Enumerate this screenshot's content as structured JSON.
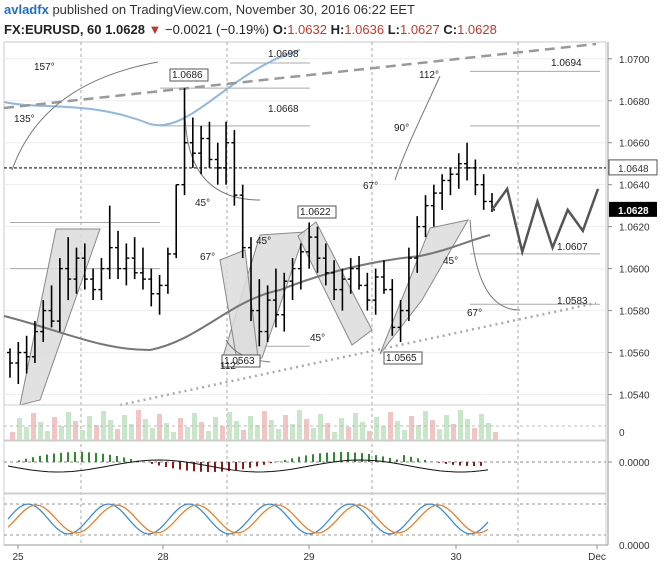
{
  "header": {
    "author": "avladfx",
    "published_text": "published on TradingView.com, November 30, 2016 06:22 EET",
    "symbol": "FX:EURUSD, 60",
    "last": "1.0628",
    "change": "−0.0021 (−0.19%)",
    "o_label": "O:",
    "o_value": "1.0632",
    "h_label": "H:",
    "h_value": "1.0636",
    "l_label": "L:",
    "l_value": "1.0627",
    "c_label": "C:",
    "c_value": "1.0628"
  },
  "colors": {
    "price": "#000000",
    "ma_blue": "#8fb8e0",
    "ma_gray": "#777777",
    "down_arrow": "#c0392b",
    "hist_up": "#2e8b2e",
    "hist_down": "#8b1a1a",
    "stoch_k": "#3a8fd6",
    "stoch_d": "#e8822a"
  },
  "chart_data": {
    "type": "candlestick",
    "x_labels": [
      "25",
      "28",
      "29",
      "30",
      "Dec"
    ],
    "y_axis": {
      "ticks": [
        "1.0700",
        "1.0680",
        "1.0660",
        "1.0640",
        "1.0620",
        "1.0600",
        "1.0580",
        "1.0560",
        "1.0540"
      ],
      "ylim": [
        1.0535,
        1.0708
      ]
    },
    "last_price_label": "1.0628",
    "dashed_level_label": "1.0648",
    "price_labels": [
      "1.0698",
      "1.0686",
      "1.0668",
      "1.0694",
      "1.0622",
      "1.0607",
      "1.0583",
      "1.0563",
      "1.0565"
    ],
    "angle_labels": [
      "157°",
      "135°",
      "45°",
      "67°",
      "45°",
      "112°",
      "45°",
      "90°",
      "67°",
      "112°",
      "45°",
      "67°"
    ],
    "price_series": [
      [
        1.056,
        1.0562,
        1.0548,
        1.0555
      ],
      [
        1.0555,
        1.0565,
        1.0545,
        1.056
      ],
      [
        1.056,
        1.0568,
        1.055,
        1.0558
      ],
      [
        1.0558,
        1.0575,
        1.0555,
        1.057
      ],
      [
        1.057,
        1.0585,
        1.0565,
        1.058
      ],
      [
        1.058,
        1.0592,
        1.0572,
        1.0575
      ],
      [
        1.0575,
        1.0605,
        1.057,
        1.06
      ],
      [
        1.06,
        1.0615,
        1.0585,
        1.0595
      ],
      [
        1.0595,
        1.061,
        1.0588,
        1.0605
      ],
      [
        1.0605,
        1.0612,
        1.059,
        1.0595
      ],
      [
        1.0595,
        1.06,
        1.0585,
        1.059
      ],
      [
        1.059,
        1.0605,
        1.0585,
        1.06
      ],
      [
        1.06,
        1.063,
        1.0595,
        1.061
      ],
      [
        1.061,
        1.0618,
        1.0595,
        1.06
      ],
      [
        1.06,
        1.0612,
        1.0592,
        1.0605
      ],
      [
        1.0605,
        1.0615,
        1.0595,
        1.0598
      ],
      [
        1.0598,
        1.061,
        1.059,
        1.0595
      ],
      [
        1.0595,
        1.06,
        1.0582,
        1.0588
      ],
      [
        1.0588,
        1.0597,
        1.0578,
        1.0592
      ],
      [
        1.0592,
        1.061,
        1.0588,
        1.0607
      ],
      [
        1.0607,
        1.064,
        1.0605,
        1.064
      ],
      [
        1.064,
        1.0686,
        1.0635,
        1.066
      ],
      [
        1.066,
        1.0672,
        1.0648,
        1.0655
      ],
      [
        1.0655,
        1.0668,
        1.0645,
        1.0662
      ],
      [
        1.0662,
        1.067,
        1.0648,
        1.0652
      ],
      [
        1.0652,
        1.066,
        1.064,
        1.0648
      ],
      [
        1.0648,
        1.067,
        1.064,
        1.066
      ],
      [
        1.066,
        1.0666,
        1.063,
        1.0635
      ],
      [
        1.0635,
        1.064,
        1.0605,
        1.061
      ],
      [
        1.061,
        1.0615,
        1.0575,
        1.058
      ],
      [
        1.058,
        1.0595,
        1.0563,
        1.057
      ],
      [
        1.057,
        1.0592,
        1.0565,
        1.0585
      ],
      [
        1.0585,
        1.06,
        1.0572,
        1.0578
      ],
      [
        1.0578,
        1.0598,
        1.057,
        1.0594
      ],
      [
        1.0594,
        1.0605,
        1.0585,
        1.06
      ],
      [
        1.06,
        1.0612,
        1.059,
        1.0608
      ],
      [
        1.0608,
        1.0622,
        1.06,
        1.0615
      ],
      [
        1.0615,
        1.062,
        1.0598,
        1.0605
      ],
      [
        1.0605,
        1.0612,
        1.0592,
        1.0598
      ],
      [
        1.0598,
        1.0604,
        1.0585,
        1.059
      ],
      [
        1.059,
        1.06,
        1.058,
        1.0595
      ],
      [
        1.0595,
        1.0605,
        1.0588,
        1.06
      ],
      [
        1.06,
        1.0606,
        1.059,
        1.0592
      ],
      [
        1.0592,
        1.0598,
        1.058,
        1.0585
      ],
      [
        1.0585,
        1.06,
        1.0578,
        1.0596
      ],
      [
        1.0596,
        1.0604,
        1.0588,
        1.059
      ],
      [
        1.059,
        1.0595,
        1.0568,
        1.0572
      ],
      [
        1.0572,
        1.0585,
        1.0565,
        1.058
      ],
      [
        1.058,
        1.061,
        1.0575,
        1.0605
      ],
      [
        1.0605,
        1.0625,
        1.0598,
        1.062
      ],
      [
        1.062,
        1.0635,
        1.0615,
        1.063
      ],
      [
        1.063,
        1.064,
        1.062,
        1.0636
      ],
      [
        1.0636,
        1.0645,
        1.0628,
        1.0642
      ],
      [
        1.0642,
        1.0648,
        1.0635,
        1.0645
      ],
      [
        1.0645,
        1.0655,
        1.0638,
        1.065
      ],
      [
        1.065,
        1.066,
        1.0642,
        1.0648
      ],
      [
        1.0648,
        1.0652,
        1.0635,
        1.064
      ],
      [
        1.064,
        1.0645,
        1.0628,
        1.0632
      ],
      [
        1.0632,
        1.0636,
        1.0627,
        1.0628
      ]
    ],
    "projection": [
      1.0628,
      1.0638,
      1.0608,
      1.0632,
      1.061,
      1.0628,
      1.0618,
      1.0638
    ],
    "panels": [
      "volume",
      "macd_histogram",
      "stochastic"
    ],
    "volume_axis_label": "0",
    "macd_axis_label": "0.0000",
    "stoch_axis_label": "0.0000"
  }
}
